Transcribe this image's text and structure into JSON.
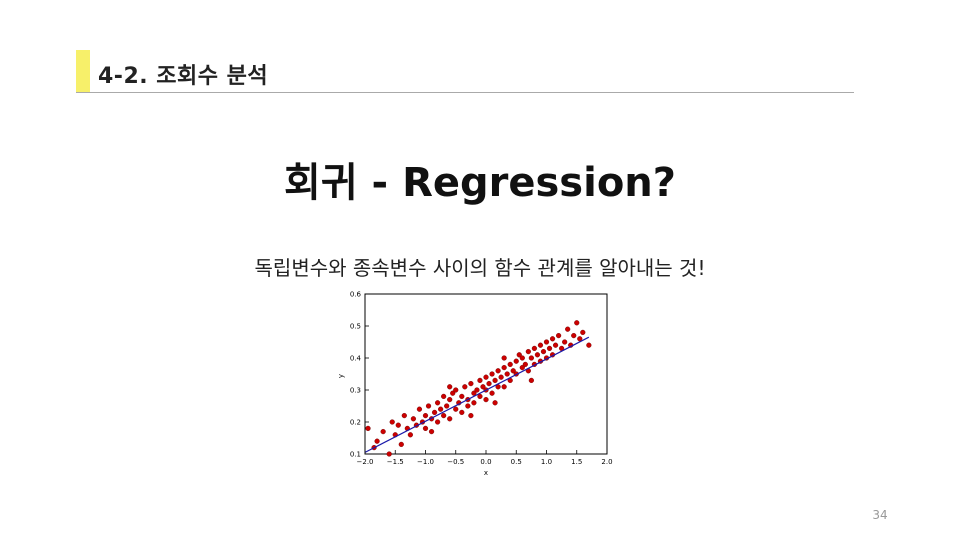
{
  "header": {
    "section_title": "4-2. 조회수 분석"
  },
  "slide": {
    "title": "회귀 - Regression?",
    "subtitle": "독립변수와 종속변수 사이의 함수 관계를 알아내는 것!",
    "page_number": "34"
  },
  "colors": {
    "accent": "#f7f06a",
    "points": "#cc0000",
    "line": "#1a1aaa"
  },
  "chart_data": {
    "type": "scatter",
    "title": "",
    "xlabel": "x",
    "ylabel": "y",
    "xlim": [
      -2.0,
      2.0
    ],
    "ylim": [
      0.1,
      0.6
    ],
    "xticks": [
      "−2.0",
      "−1.5",
      "−1.0",
      "−0.5",
      "0.0",
      "0.5",
      "1.0",
      "1.5",
      "2.0"
    ],
    "yticks": [
      "0.1",
      "0.2",
      "0.3",
      "0.4",
      "0.5",
      "0.6"
    ],
    "grid": false,
    "trend_line": {
      "x": [
        -2.0,
        1.7
      ],
      "y": [
        0.105,
        0.465
      ]
    },
    "points": [
      [
        -1.95,
        0.18
      ],
      [
        -1.8,
        0.14
      ],
      [
        -1.7,
        0.17
      ],
      [
        -1.6,
        0.1
      ],
      [
        -1.55,
        0.2
      ],
      [
        -1.5,
        0.16
      ],
      [
        -1.45,
        0.19
      ],
      [
        -1.4,
        0.13
      ],
      [
        -1.35,
        0.22
      ],
      [
        -1.3,
        0.18
      ],
      [
        -1.25,
        0.16
      ],
      [
        -1.2,
        0.21
      ],
      [
        -1.15,
        0.19
      ],
      [
        -1.1,
        0.24
      ],
      [
        -1.05,
        0.2
      ],
      [
        -1.0,
        0.22
      ],
      [
        -1.0,
        0.18
      ],
      [
        -0.95,
        0.25
      ],
      [
        -0.9,
        0.21
      ],
      [
        -0.9,
        0.17
      ],
      [
        -0.85,
        0.23
      ],
      [
        -0.8,
        0.26
      ],
      [
        -0.8,
        0.2
      ],
      [
        -0.75,
        0.24
      ],
      [
        -0.7,
        0.22
      ],
      [
        -0.7,
        0.28
      ],
      [
        -0.65,
        0.25
      ],
      [
        -0.6,
        0.27
      ],
      [
        -0.6,
        0.21
      ],
      [
        -0.55,
        0.29
      ],
      [
        -0.5,
        0.24
      ],
      [
        -0.5,
        0.3
      ],
      [
        -0.45,
        0.26
      ],
      [
        -0.4,
        0.28
      ],
      [
        -0.4,
        0.23
      ],
      [
        -0.35,
        0.31
      ],
      [
        -0.3,
        0.27
      ],
      [
        -0.3,
        0.25
      ],
      [
        -0.25,
        0.32
      ],
      [
        -0.2,
        0.29
      ],
      [
        -0.2,
        0.26
      ],
      [
        -0.15,
        0.3
      ],
      [
        -0.1,
        0.33
      ],
      [
        -0.1,
        0.28
      ],
      [
        -0.05,
        0.31
      ],
      [
        0.0,
        0.3
      ],
      [
        0.0,
        0.34
      ],
      [
        0.0,
        0.27
      ],
      [
        0.05,
        0.32
      ],
      [
        0.1,
        0.35
      ],
      [
        0.1,
        0.29
      ],
      [
        0.15,
        0.33
      ],
      [
        0.2,
        0.31
      ],
      [
        0.2,
        0.36
      ],
      [
        0.25,
        0.34
      ],
      [
        0.3,
        0.37
      ],
      [
        0.3,
        0.31
      ],
      [
        0.35,
        0.35
      ],
      [
        0.4,
        0.38
      ],
      [
        0.4,
        0.33
      ],
      [
        0.45,
        0.36
      ],
      [
        0.5,
        0.39
      ],
      [
        0.5,
        0.35
      ],
      [
        0.55,
        0.41
      ],
      [
        0.6,
        0.37
      ],
      [
        0.6,
        0.4
      ],
      [
        0.65,
        0.38
      ],
      [
        0.7,
        0.42
      ],
      [
        0.7,
        0.36
      ],
      [
        0.75,
        0.4
      ],
      [
        0.8,
        0.43
      ],
      [
        0.8,
        0.38
      ],
      [
        0.85,
        0.41
      ],
      [
        0.9,
        0.44
      ],
      [
        0.9,
        0.39
      ],
      [
        0.95,
        0.42
      ],
      [
        1.0,
        0.45
      ],
      [
        1.0,
        0.4
      ],
      [
        1.05,
        0.43
      ],
      [
        1.1,
        0.46
      ],
      [
        1.1,
        0.41
      ],
      [
        1.15,
        0.44
      ],
      [
        1.2,
        0.47
      ],
      [
        1.25,
        0.43
      ],
      [
        1.3,
        0.45
      ],
      [
        1.35,
        0.49
      ],
      [
        1.4,
        0.44
      ],
      [
        1.45,
        0.47
      ],
      [
        1.5,
        0.51
      ],
      [
        1.55,
        0.46
      ],
      [
        1.6,
        0.48
      ],
      [
        1.7,
        0.44
      ],
      [
        -1.85,
        0.12
      ],
      [
        -0.25,
        0.22
      ],
      [
        0.3,
        0.4
      ],
      [
        0.75,
        0.33
      ],
      [
        -0.6,
        0.31
      ],
      [
        0.15,
        0.26
      ]
    ]
  }
}
